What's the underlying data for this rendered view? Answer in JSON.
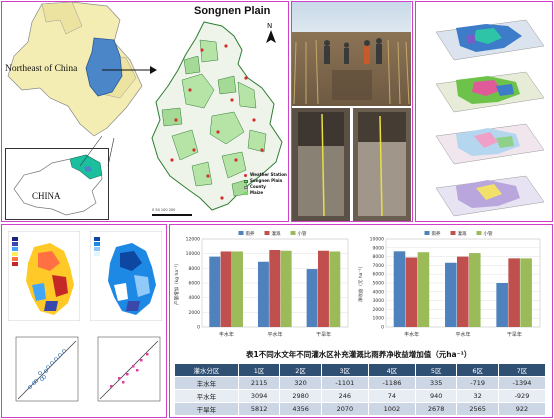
{
  "panel_map": {
    "title": "Songnen Plain",
    "northeast_label": "Northeast of China",
    "china_label": "CHINA",
    "north_label": "N",
    "legend": [
      "Weather Station",
      "Songnen Plain",
      "County",
      "Maize"
    ],
    "scale_text": "0  50  100      200"
  },
  "panel_charts": {
    "chart1_ylabel": "产量增加（kg ha⁻¹）",
    "chart2_ylabel": "净收益（元 ha⁻¹）",
    "table_title": "表1不同水文年不同灌水区补充灌溉比雨养净收益增加值（元ha⁻¹）",
    "table": {
      "headers": [
        "灌水分区",
        "1区",
        "2区",
        "3区",
        "4区",
        "5区",
        "6区",
        "7区"
      ],
      "rows": [
        [
          "丰水年",
          "2115",
          "320",
          "-1101",
          "-1186",
          "335",
          "-719",
          "-1394"
        ],
        [
          "平水年",
          "3094",
          "2980",
          "246",
          "74",
          "940",
          "32",
          "-929"
        ],
        [
          "干旱年",
          "5812",
          "4356",
          "2070",
          "1002",
          "2678",
          "2565",
          "922"
        ]
      ]
    }
  },
  "chart_data": [
    {
      "type": "bar",
      "categories": [
        "丰水年",
        "平水年",
        "干旱年"
      ],
      "series": [
        {
          "name": "雨养",
          "values": [
            9600,
            8900,
            7900
          ]
        },
        {
          "name": "灌溉",
          "values": [
            10300,
            10500,
            10400
          ]
        },
        {
          "name": "小管",
          "values": [
            10300,
            10400,
            10300
          ]
        }
      ],
      "ylim": [
        0,
        12000
      ],
      "yticks": [
        "0",
        "2000",
        "4000",
        "6000",
        "8000",
        "10000",
        "12000"
      ],
      "colors": [
        "#4f81bd",
        "#c0504d",
        "#9bbb59"
      ]
    },
    {
      "type": "bar",
      "categories": [
        "丰水年",
        "平水年",
        "干旱年"
      ],
      "series": [
        {
          "name": "雨养",
          "values": [
            8600,
            7300,
            5000
          ]
        },
        {
          "name": "灌溉",
          "values": [
            7900,
            8000,
            7800
          ]
        },
        {
          "name": "小管",
          "values": [
            8500,
            8400,
            7800
          ]
        }
      ],
      "ylim": [
        0,
        10000
      ],
      "yticks": [
        "0",
        "1000",
        "2000",
        "3000",
        "4000",
        "5000",
        "6000",
        "7000",
        "8000",
        "9000",
        "10000"
      ],
      "colors": [
        "#4f81bd",
        "#c0504d",
        "#9bbb59"
      ]
    }
  ]
}
